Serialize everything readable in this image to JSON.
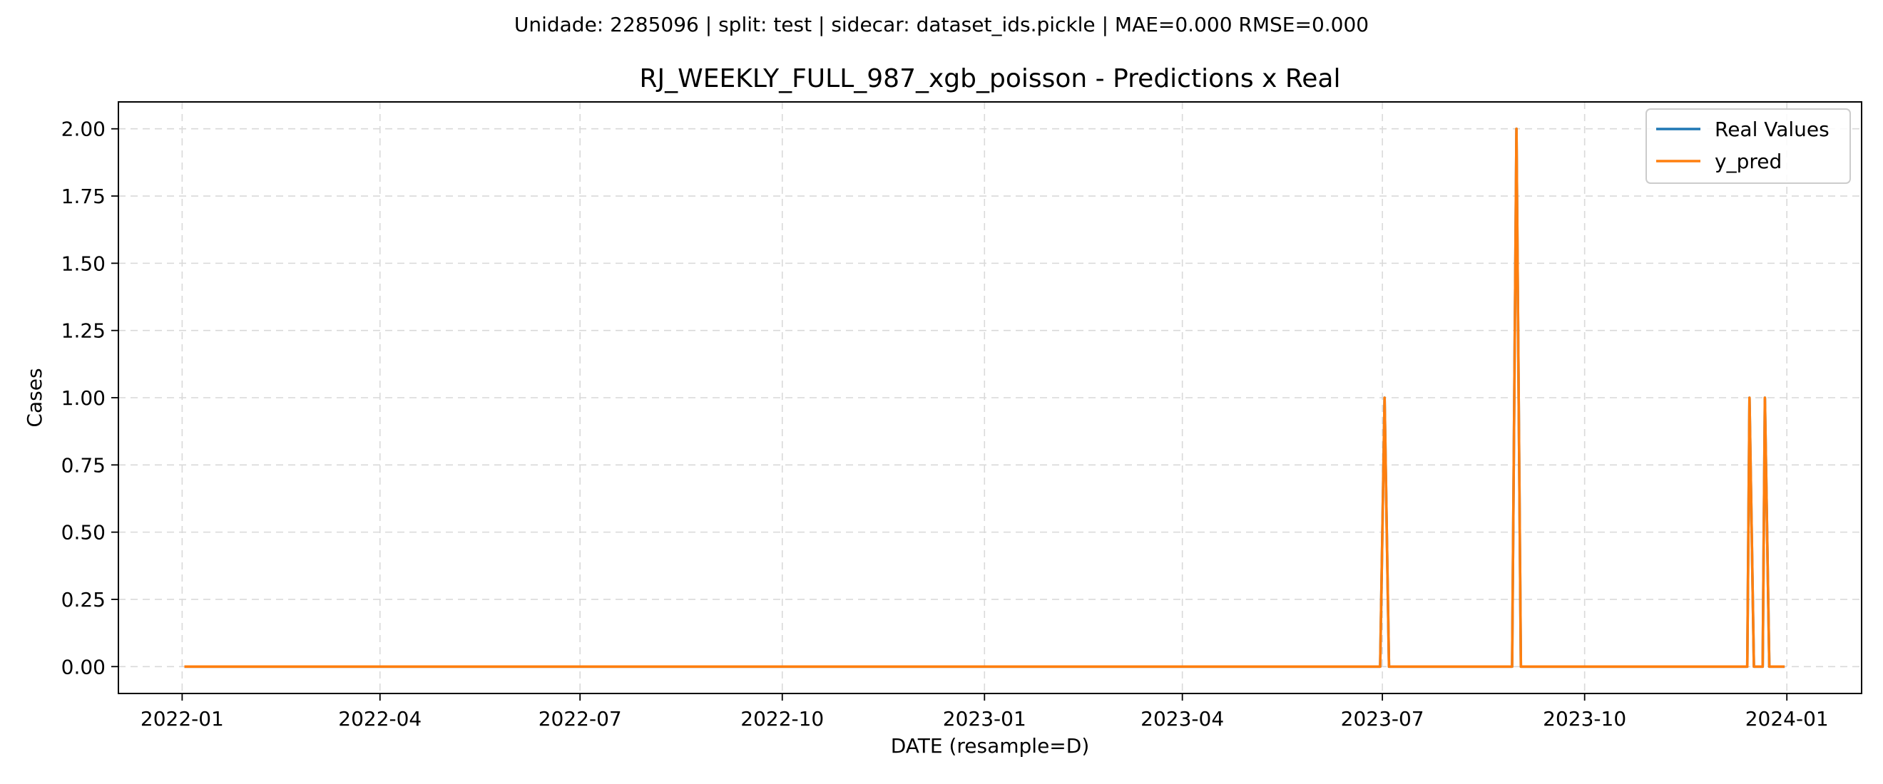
{
  "chart_data": {
    "type": "line",
    "suptitle": "Unidade: 2285096 | split: test | sidecar: dataset_ids.pickle | MAE=0.000  RMSE=0.000",
    "title": "RJ_WEEKLY_FULL_987_xgb_poisson - Predictions x Real",
    "xlabel": "DATE (resample=D)",
    "ylabel": "Cases",
    "x_range": [
      "2021-12-03",
      "2024-02-04"
    ],
    "ylim": [
      -0.1,
      2.1
    ],
    "x_ticks": [
      {
        "date": "2022-01-01",
        "label": "2022-01"
      },
      {
        "date": "2022-04-01",
        "label": "2022-04"
      },
      {
        "date": "2022-07-01",
        "label": "2022-07"
      },
      {
        "date": "2022-10-01",
        "label": "2022-10"
      },
      {
        "date": "2023-01-01",
        "label": "2023-01"
      },
      {
        "date": "2023-04-01",
        "label": "2023-04"
      },
      {
        "date": "2023-07-01",
        "label": "2023-07"
      },
      {
        "date": "2023-10-01",
        "label": "2023-10"
      },
      {
        "date": "2024-01-01",
        "label": "2024-01"
      }
    ],
    "y_ticks": [
      {
        "value": 0.0,
        "label": "0.00"
      },
      {
        "value": 0.25,
        "label": "0.25"
      },
      {
        "value": 0.5,
        "label": "0.50"
      },
      {
        "value": 0.75,
        "label": "0.75"
      },
      {
        "value": 1.0,
        "label": "1.00"
      },
      {
        "value": 1.25,
        "label": "1.25"
      },
      {
        "value": 1.5,
        "label": "1.50"
      },
      {
        "value": 1.75,
        "label": "1.75"
      },
      {
        "value": 2.0,
        "label": "2.00"
      }
    ],
    "grid": true,
    "legend_position": "top-right",
    "series": [
      {
        "name": "Real Values",
        "color": "#1f77b4",
        "x": [
          "2022-01-02",
          "2023-06-30",
          "2023-07-02",
          "2023-07-04",
          "2023-08-29",
          "2023-08-31",
          "2023-09-02",
          "2023-12-14",
          "2023-12-15",
          "2023-12-17",
          "2023-12-21",
          "2023-12-22",
          "2023-12-24",
          "2023-12-31"
        ],
        "values": [
          0,
          0,
          1,
          0,
          0,
          2,
          0,
          0,
          1,
          0,
          0,
          1,
          0,
          0
        ]
      },
      {
        "name": "y_pred",
        "color": "#ff7f0e",
        "x": [
          "2022-01-02",
          "2023-06-30",
          "2023-07-02",
          "2023-07-04",
          "2023-08-29",
          "2023-08-31",
          "2023-09-02",
          "2023-12-14",
          "2023-12-15",
          "2023-12-17",
          "2023-12-21",
          "2023-12-22",
          "2023-12-24",
          "2023-12-31"
        ],
        "values": [
          0,
          0,
          1,
          0,
          0,
          2,
          0,
          0,
          1,
          0,
          0,
          1,
          0,
          0
        ]
      }
    ]
  }
}
